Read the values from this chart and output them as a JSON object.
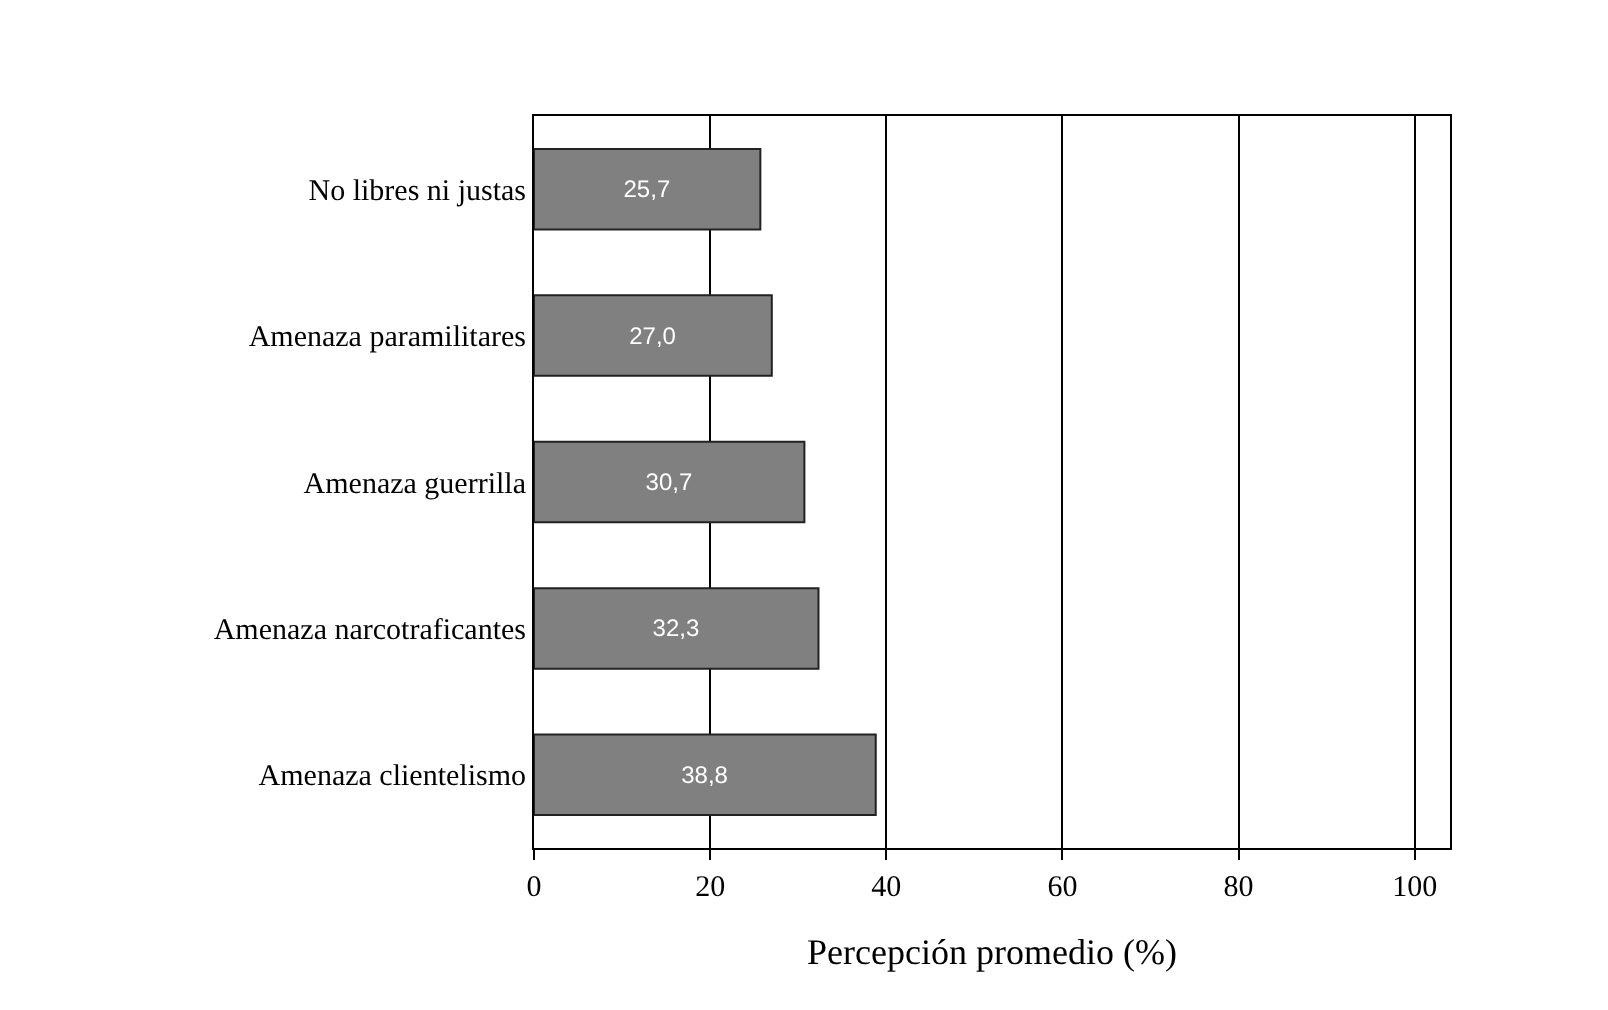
{
  "chart_data": {
    "type": "bar",
    "orientation": "horizontal",
    "categories": [
      "No libres ni justas",
      "Amenaza paramilitares",
      "Amenaza guerrilla",
      "Amenaza narcotraficantes",
      "Amenaza clientelismo"
    ],
    "values": [
      25.7,
      27.0,
      30.7,
      32.3,
      38.8
    ],
    "value_labels": [
      "25,7",
      "27,0",
      "30,7",
      "32,3",
      "38,8"
    ],
    "color": "#808080",
    "xlabel": "Percepción promedio (%)",
    "xlim": [
      0,
      104
    ],
    "xticks": [
      0,
      20,
      40,
      60,
      80,
      100
    ],
    "grid": "x"
  }
}
